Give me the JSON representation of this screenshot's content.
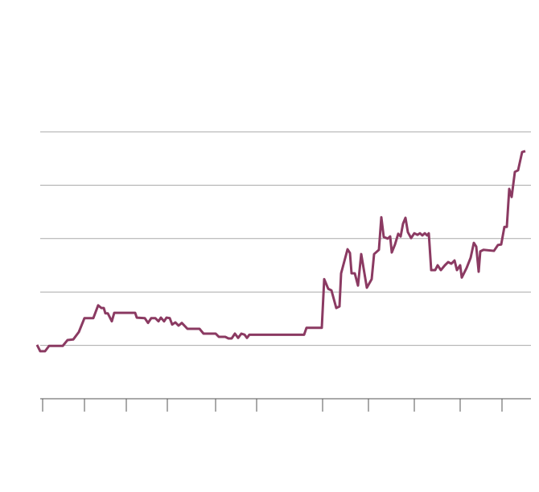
{
  "chart_data": {
    "type": "line",
    "color": "#8b3a62",
    "grid": true,
    "x": [
      0,
      4,
      10,
      15,
      32,
      38,
      45,
      52,
      59,
      70,
      76,
      80,
      83,
      85,
      88,
      93,
      96,
      101,
      122,
      124,
      134,
      138,
      142,
      147,
      151,
      154,
      158,
      161,
      165,
      168,
      172,
      176,
      180,
      187,
      202,
      207,
      222,
      226,
      234,
      238,
      242,
      246,
      250,
      254,
      258,
      261,
      264,
      332,
      335,
      354,
      357,
      362,
      366,
      372,
      376,
      378,
      386,
      389,
      391,
      395,
      399,
      403,
      410,
      416,
      419,
      425,
      428,
      431,
      436,
      439,
      441,
      445,
      449,
      452,
      455,
      458,
      461,
      465,
      469,
      473,
      476,
      479,
      482,
      485,
      487,
      490,
      495,
      498,
      502,
      507,
      511,
      515,
      519,
      522,
      526,
      528,
      534,
      539,
      543,
      546,
      549,
      551,
      555,
      568,
      573,
      577,
      581,
      584,
      587,
      590,
      594,
      598,
      603,
      607
    ],
    "values": [
      1.01,
      0.89,
      0.89,
      0.99,
      0.99,
      1.1,
      1.11,
      1.25,
      1.51,
      1.51,
      1.75,
      1.7,
      1.7,
      1.6,
      1.6,
      1.45,
      1.61,
      1.61,
      1.61,
      1.52,
      1.51,
      1.42,
      1.51,
      1.51,
      1.45,
      1.52,
      1.45,
      1.52,
      1.51,
      1.39,
      1.43,
      1.37,
      1.42,
      1.31,
      1.31,
      1.22,
      1.22,
      1.16,
      1.16,
      1.13,
      1.13,
      1.22,
      1.14,
      1.22,
      1.2,
      1.14,
      1.2,
      1.2,
      1.33,
      1.33,
      2.24,
      2.06,
      2.03,
      1.7,
      1.73,
      2.35,
      2.8,
      2.73,
      2.35,
      2.35,
      2.12,
      2.71,
      2.08,
      2.24,
      2.71,
      2.79,
      3.4,
      3.03,
      3.0,
      3.04,
      2.74,
      2.89,
      3.09,
      3.04,
      3.28,
      3.39,
      3.12,
      3.01,
      3.1,
      3.07,
      3.1,
      3.06,
      3.1,
      3.06,
      3.1,
      2.41,
      2.41,
      2.5,
      2.41,
      2.5,
      2.56,
      2.53,
      2.59,
      2.41,
      2.5,
      2.27,
      2.45,
      2.64,
      2.92,
      2.85,
      2.38,
      2.76,
      2.79,
      2.77,
      2.88,
      2.89,
      3.22,
      3.22,
      3.93,
      3.78,
      4.25,
      4.28,
      4.62,
      4.64
    ],
    "xlim": [
      0,
      607
    ],
    "xticks": [
      7,
      59,
      111,
      162,
      222,
      273,
      355,
      412,
      469,
      526,
      578
    ],
    "ylim": [
      0,
      5
    ],
    "yticks": [
      0,
      1,
      2,
      3,
      4,
      5
    ]
  }
}
